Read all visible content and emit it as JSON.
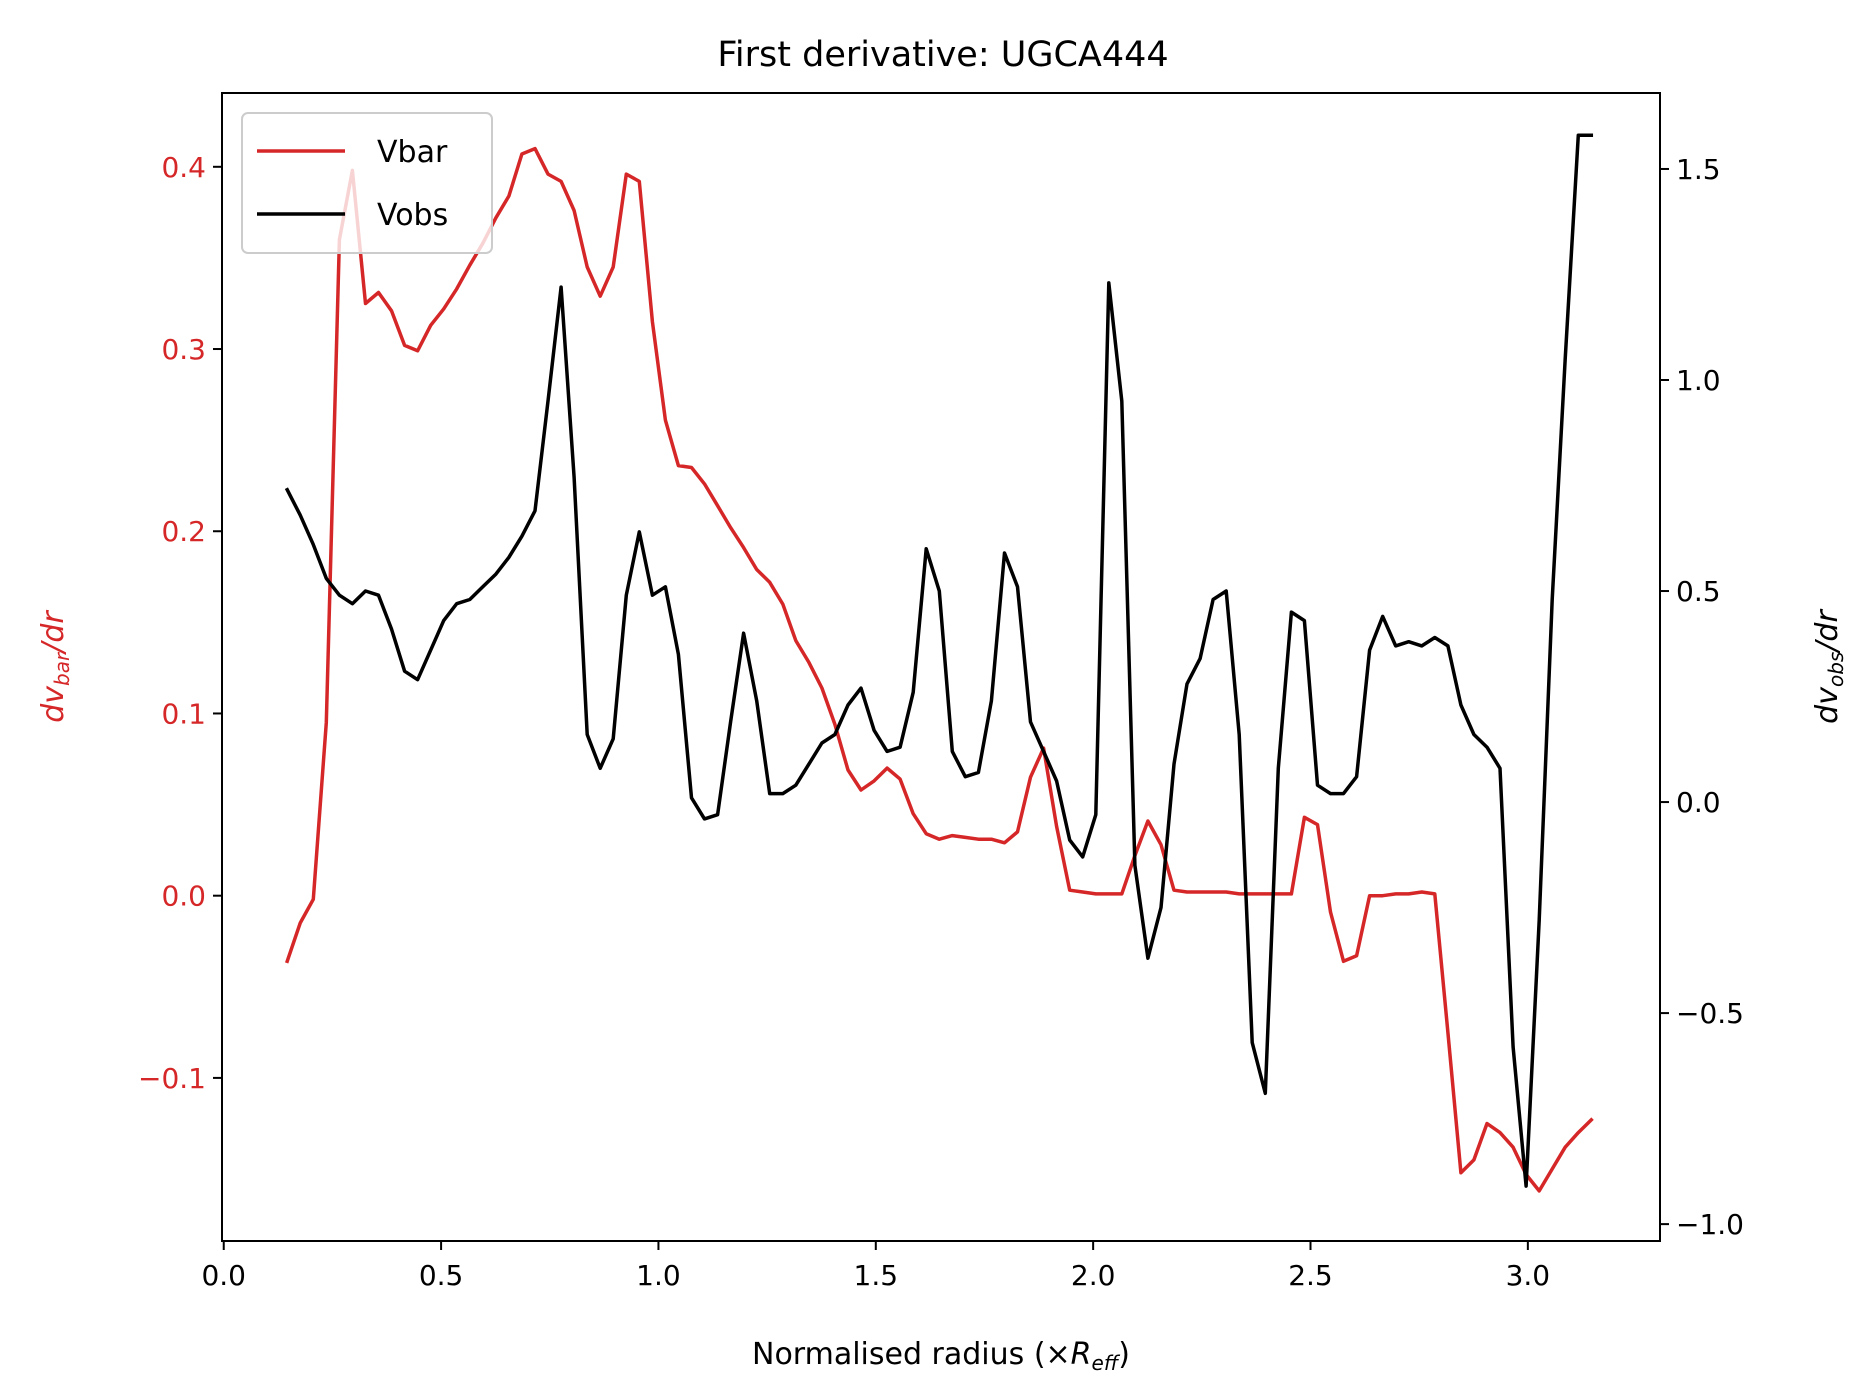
{
  "chart_data": {
    "type": "line",
    "title": "First derivative: UGCA444",
    "xlabel": {
      "main": "Normalised radius (×",
      "var": "R",
      "sub": "eff",
      "close": ")"
    },
    "ylabel_left": {
      "var": "dv",
      "sub": "bar",
      "tail": "/dr"
    },
    "ylabel_right": {
      "var": "dv",
      "sub": "obs",
      "tail": "/dr"
    },
    "xlim": [
      -0.004,
      3.304
    ],
    "ylim_left": [
      -0.1895,
      0.4405
    ],
    "ylim_right": [
      -1.04,
      1.68
    ],
    "xticks": [
      0.0,
      0.5,
      1.0,
      1.5,
      2.0,
      2.5,
      3.0
    ],
    "xtick_labels": [
      "0.0",
      "0.5",
      "1.0",
      "1.5",
      "2.0",
      "2.5",
      "3.0"
    ],
    "yticks_left": [
      -0.1,
      0.0,
      0.1,
      0.2,
      0.3,
      0.4
    ],
    "ytick_labels_left": [
      "−0.1",
      "0.0",
      "0.1",
      "0.2",
      "0.3",
      "0.4"
    ],
    "yticks_right": [
      -1.0,
      -0.5,
      0.0,
      0.5,
      1.0,
      1.5
    ],
    "ytick_labels_right": [
      "−1.0",
      "−0.5",
      "0.0",
      "0.5",
      "1.0",
      "1.5"
    ],
    "legend_placement": "upper-left",
    "colors": {
      "vbar": "#d62728",
      "vobs": "#000000",
      "axis": "#000000"
    },
    "series": [
      {
        "name": "Vbar",
        "axis": "left",
        "x": [
          0.146,
          0.176,
          0.206,
          0.236,
          0.266,
          0.296,
          0.326,
          0.356,
          0.386,
          0.416,
          0.446,
          0.476,
          0.506,
          0.536,
          0.566,
          0.596,
          0.626,
          0.656,
          0.686,
          0.716,
          0.746,
          0.776,
          0.806,
          0.836,
          0.866,
          0.896,
          0.926,
          0.956,
          0.986,
          1.016,
          1.046,
          1.076,
          1.106,
          1.136,
          1.166,
          1.196,
          1.226,
          1.256,
          1.286,
          1.316,
          1.346,
          1.376,
          1.406,
          1.436,
          1.466,
          1.496,
          1.526,
          1.556,
          1.586,
          1.616,
          1.646,
          1.676,
          1.706,
          1.736,
          1.766,
          1.796,
          1.826,
          1.856,
          1.886,
          1.916,
          1.946,
          1.976,
          2.006,
          2.036,
          2.066,
          2.096,
          2.126,
          2.156,
          2.186,
          2.216,
          2.246,
          2.276,
          2.306,
          2.336,
          2.366,
          2.396,
          2.426,
          2.456,
          2.486,
          2.516,
          2.546,
          2.576,
          2.606,
          2.636,
          2.666,
          2.696,
          2.726,
          2.756,
          2.786,
          2.816,
          2.846,
          2.876,
          2.906,
          2.936,
          2.966,
          2.996,
          3.026,
          3.056,
          3.086,
          3.116,
          3.146
        ],
        "y": [
          -0.036,
          -0.015,
          -0.002,
          0.095,
          0.36,
          0.398,
          0.325,
          0.331,
          0.321,
          0.302,
          0.299,
          0.313,
          0.322,
          0.333,
          0.346,
          0.358,
          0.372,
          0.384,
          0.407,
          0.41,
          0.396,
          0.392,
          0.376,
          0.345,
          0.329,
          0.345,
          0.396,
          0.392,
          0.315,
          0.261,
          0.236,
          0.235,
          0.226,
          0.214,
          0.202,
          0.191,
          0.179,
          0.172,
          0.16,
          0.14,
          0.128,
          0.114,
          0.094,
          0.069,
          0.058,
          0.063,
          0.07,
          0.064,
          0.045,
          0.034,
          0.031,
          0.033,
          0.032,
          0.031,
          0.031,
          0.029,
          0.035,
          0.065,
          0.081,
          0.038,
          0.003,
          0.002,
          0.001,
          0.001,
          0.001,
          0.022,
          0.041,
          0.028,
          0.003,
          0.002,
          0.002,
          0.002,
          0.002,
          0.001,
          0.001,
          0.001,
          0.001,
          0.001,
          0.043,
          0.039,
          -0.009,
          -0.036,
          -0.033,
          0.0,
          0.0,
          0.001,
          0.001,
          0.002,
          0.001,
          -0.075,
          -0.152,
          -0.145,
          -0.125,
          -0.13,
          -0.138,
          -0.153,
          -0.162,
          -0.15,
          -0.138,
          -0.13,
          -0.123
        ]
      },
      {
        "name": "Vobs",
        "axis": "right",
        "x": [
          0.146,
          0.176,
          0.206,
          0.236,
          0.266,
          0.296,
          0.326,
          0.356,
          0.386,
          0.416,
          0.446,
          0.476,
          0.506,
          0.536,
          0.566,
          0.596,
          0.626,
          0.656,
          0.686,
          0.716,
          0.746,
          0.776,
          0.806,
          0.836,
          0.866,
          0.896,
          0.926,
          0.956,
          0.986,
          1.016,
          1.046,
          1.076,
          1.106,
          1.136,
          1.166,
          1.196,
          1.226,
          1.256,
          1.286,
          1.316,
          1.346,
          1.376,
          1.406,
          1.436,
          1.466,
          1.496,
          1.526,
          1.556,
          1.586,
          1.616,
          1.646,
          1.676,
          1.706,
          1.736,
          1.766,
          1.796,
          1.826,
          1.856,
          1.886,
          1.916,
          1.946,
          1.976,
          2.006,
          2.036,
          2.066,
          2.096,
          2.126,
          2.156,
          2.186,
          2.216,
          2.246,
          2.276,
          2.306,
          2.336,
          2.366,
          2.396,
          2.426,
          2.456,
          2.486,
          2.516,
          2.546,
          2.576,
          2.606,
          2.636,
          2.666,
          2.696,
          2.726,
          2.756,
          2.786,
          2.816,
          2.846,
          2.876,
          2.906,
          2.936,
          2.966,
          2.996,
          3.026,
          3.056,
          3.086,
          3.116,
          3.146
        ],
        "y": [
          0.74,
          0.68,
          0.61,
          0.53,
          0.49,
          0.47,
          0.5,
          0.49,
          0.41,
          0.31,
          0.29,
          0.36,
          0.43,
          0.47,
          0.48,
          0.51,
          0.54,
          0.58,
          0.63,
          0.69,
          0.95,
          1.22,
          0.77,
          0.16,
          0.08,
          0.15,
          0.49,
          0.64,
          0.49,
          0.51,
          0.35,
          0.01,
          -0.04,
          -0.03,
          0.19,
          0.4,
          0.24,
          0.02,
          0.02,
          0.04,
          0.09,
          0.14,
          0.16,
          0.23,
          0.27,
          0.17,
          0.12,
          0.13,
          0.26,
          0.6,
          0.5,
          0.12,
          0.06,
          0.07,
          0.24,
          0.59,
          0.51,
          0.19,
          0.12,
          0.05,
          -0.09,
          -0.13,
          -0.03,
          1.23,
          0.95,
          -0.15,
          -0.37,
          -0.25,
          0.09,
          0.28,
          0.34,
          0.48,
          0.5,
          0.16,
          -0.57,
          -0.69,
          0.08,
          0.45,
          0.43,
          0.04,
          0.02,
          0.02,
          0.06,
          0.36,
          0.44,
          0.37,
          0.38,
          0.37,
          0.39,
          0.37,
          0.23,
          0.16,
          0.13,
          0.08,
          -0.58,
          -0.91,
          -0.28,
          0.48,
          1.05,
          1.58,
          1.58
        ]
      }
    ]
  }
}
